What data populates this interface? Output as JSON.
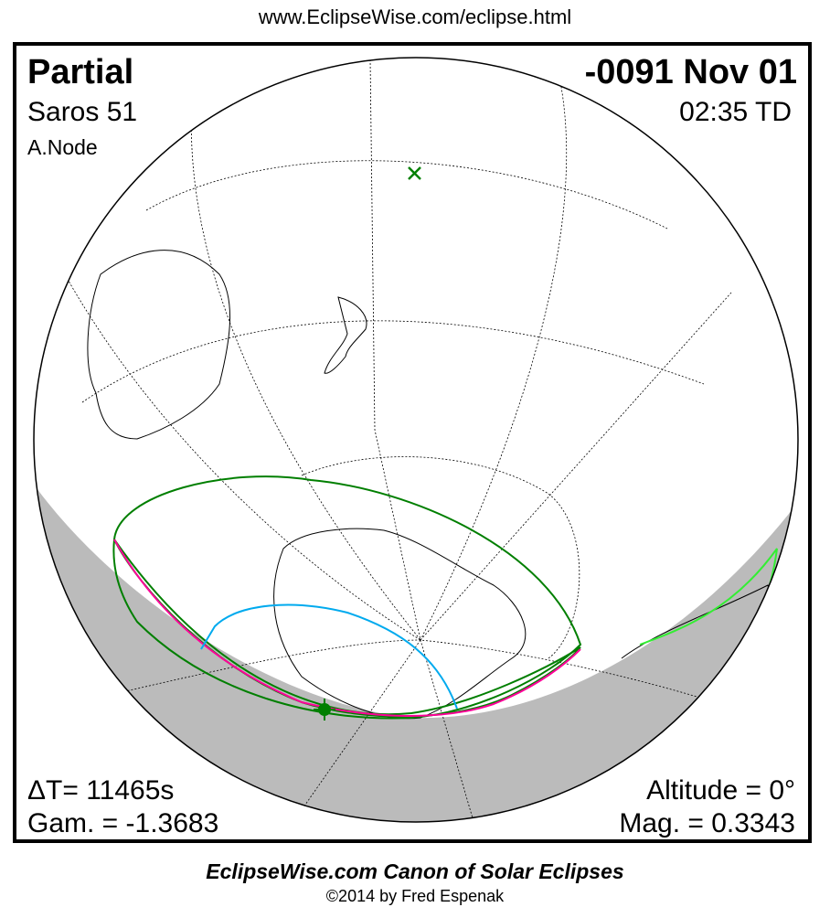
{
  "header": {
    "url": "www.EclipseWise.com/eclipse.html"
  },
  "map": {
    "eclipse_type": "Partial",
    "date": "-0091 Nov 01",
    "saros": "Saros  51",
    "time": "02:35 TD",
    "node": "A.Node",
    "delta_t": "ΔT=  11465s",
    "gamma": "Gam. = -1.3683",
    "altitude": "Altitude =  0°",
    "magnitude": "Mag. = 0.3343",
    "colors": {
      "night": "#bbbbbb",
      "penumbra_limit": "#007f00",
      "max_eclipse_curve": "#ff0099",
      "sunrise_sunset_curve": "#00aaee",
      "coastline_night": "#33ee33"
    },
    "markers": [
      "greatest-eclipse-star",
      "subsolar-x"
    ]
  },
  "footer": {
    "title": "EclipseWise.com Canon of Solar Eclipses",
    "copyright": "©2014 by Fred Espenak"
  }
}
